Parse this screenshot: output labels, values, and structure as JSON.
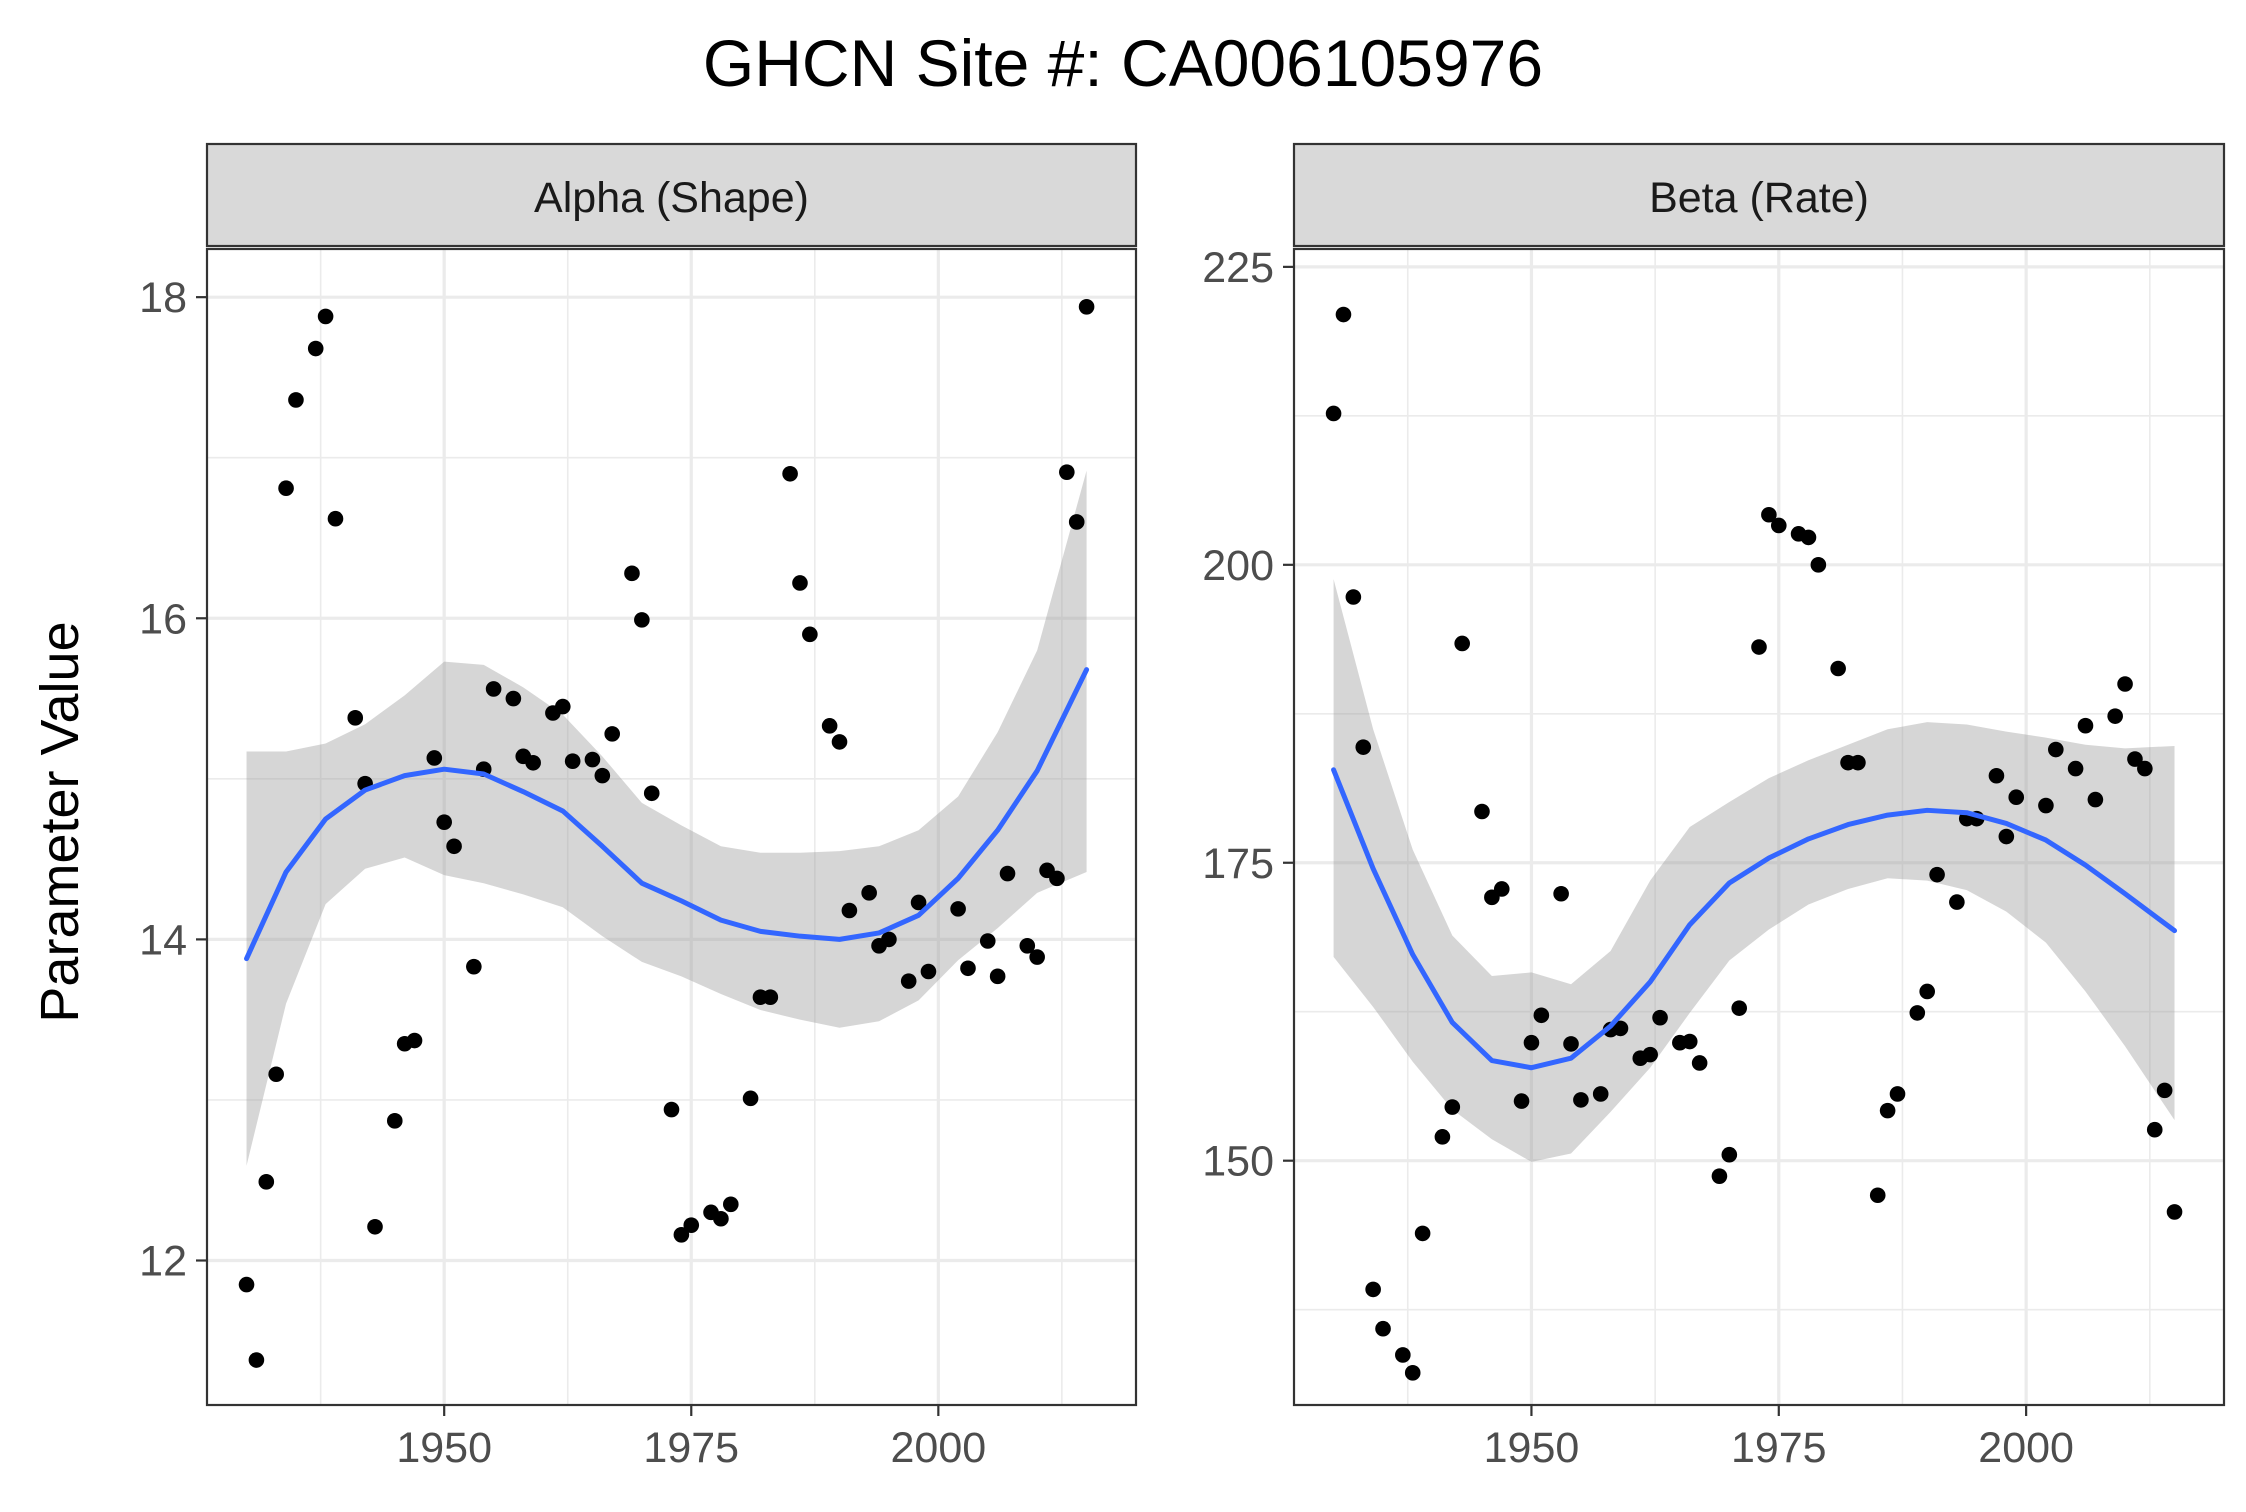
{
  "title": "GHCN Site #: CA006105976",
  "ylabel": "Parameter Value",
  "colors": {
    "points": "#000000",
    "smooth_line": "#3366ff",
    "ribbon": "#999999",
    "strip": "#d9d9d9",
    "grid": "#ebebeb"
  },
  "chart_data": [
    {
      "type": "scatter",
      "panel_label": "Alpha (Shape)",
      "xlim": [
        1926,
        2020
      ],
      "ylim": [
        11.1,
        18.3
      ],
      "x_ticks": [
        1950,
        1975,
        2000
      ],
      "y_ticks": [
        12,
        14,
        16,
        18
      ],
      "grid": true,
      "points": [
        [
          1930,
          11.85
        ],
        [
          1931,
          11.38
        ],
        [
          1932,
          12.49
        ],
        [
          1933,
          13.16
        ],
        [
          1934,
          16.81
        ],
        [
          1935,
          17.36
        ],
        [
          1937,
          17.68
        ],
        [
          1938,
          17.88
        ],
        [
          1939,
          16.62
        ],
        [
          1941,
          15.38
        ],
        [
          1942,
          14.97
        ],
        [
          1943,
          12.21
        ],
        [
          1945,
          12.87
        ],
        [
          1946,
          13.35
        ],
        [
          1947,
          13.37
        ],
        [
          1949,
          15.13
        ],
        [
          1950,
          14.73
        ],
        [
          1951,
          14.58
        ],
        [
          1953,
          13.83
        ],
        [
          1954,
          15.06
        ],
        [
          1955,
          15.56
        ],
        [
          1957,
          15.5
        ],
        [
          1958,
          15.14
        ],
        [
          1959,
          15.1
        ],
        [
          1961,
          15.41
        ],
        [
          1962,
          15.45
        ],
        [
          1963,
          15.11
        ],
        [
          1965,
          15.12
        ],
        [
          1966,
          15.02
        ],
        [
          1967,
          15.28
        ],
        [
          1969,
          16.28
        ],
        [
          1970,
          15.99
        ],
        [
          1971,
          14.91
        ],
        [
          1973,
          12.94
        ],
        [
          1974,
          12.16
        ],
        [
          1975,
          12.22
        ],
        [
          1977,
          12.3
        ],
        [
          1978,
          12.26
        ],
        [
          1979,
          12.35
        ],
        [
          1981,
          13.01
        ],
        [
          1982,
          13.64
        ],
        [
          1983,
          13.64
        ],
        [
          1985,
          16.9
        ],
        [
          1986,
          16.22
        ],
        [
          1987,
          15.9
        ],
        [
          1989,
          15.33
        ],
        [
          1990,
          15.23
        ],
        [
          1991,
          14.18
        ],
        [
          1993,
          14.29
        ],
        [
          1994,
          13.96
        ],
        [
          1995,
          14.0
        ],
        [
          1997,
          13.74
        ],
        [
          1998,
          14.23
        ],
        [
          1999,
          13.8
        ],
        [
          2002,
          14.19
        ],
        [
          2003,
          13.82
        ],
        [
          2005,
          13.99
        ],
        [
          2006,
          13.77
        ],
        [
          2007,
          14.41
        ],
        [
          2009,
          13.96
        ],
        [
          2010,
          13.89
        ],
        [
          2011,
          14.43
        ],
        [
          2012,
          14.38
        ],
        [
          2013,
          16.91
        ],
        [
          2014,
          16.6
        ],
        [
          2015,
          17.94
        ]
      ],
      "smooth": [
        [
          1930,
          13.88
        ],
        [
          1934,
          14.42
        ],
        [
          1938,
          14.75
        ],
        [
          1942,
          14.93
        ],
        [
          1946,
          15.02
        ],
        [
          1950,
          15.06
        ],
        [
          1954,
          15.03
        ],
        [
          1958,
          14.92
        ],
        [
          1962,
          14.8
        ],
        [
          1966,
          14.58
        ],
        [
          1970,
          14.35
        ],
        [
          1974,
          14.24
        ],
        [
          1978,
          14.12
        ],
        [
          1982,
          14.05
        ],
        [
          1986,
          14.02
        ],
        [
          1990,
          14.0
        ],
        [
          1994,
          14.04
        ],
        [
          1998,
          14.15
        ],
        [
          2002,
          14.38
        ],
        [
          2006,
          14.68
        ],
        [
          2010,
          15.05
        ],
        [
          2015,
          15.68
        ]
      ],
      "ribbon_upper": [
        [
          1930,
          15.17
        ],
        [
          1934,
          15.17
        ],
        [
          1938,
          15.22
        ],
        [
          1942,
          15.34
        ],
        [
          1946,
          15.52
        ],
        [
          1950,
          15.73
        ],
        [
          1954,
          15.71
        ],
        [
          1958,
          15.57
        ],
        [
          1962,
          15.4
        ],
        [
          1966,
          15.14
        ],
        [
          1970,
          14.85
        ],
        [
          1974,
          14.71
        ],
        [
          1978,
          14.58
        ],
        [
          1982,
          14.54
        ],
        [
          1986,
          14.54
        ],
        [
          1990,
          14.55
        ],
        [
          1994,
          14.58
        ],
        [
          1998,
          14.68
        ],
        [
          2002,
          14.89
        ],
        [
          2006,
          15.29
        ],
        [
          2010,
          15.8
        ],
        [
          2015,
          16.92
        ]
      ],
      "ribbon_lower": [
        [
          1930,
          12.59
        ],
        [
          1934,
          13.6
        ],
        [
          1938,
          14.22
        ],
        [
          1942,
          14.44
        ],
        [
          1946,
          14.51
        ],
        [
          1950,
          14.4
        ],
        [
          1954,
          14.35
        ],
        [
          1958,
          14.28
        ],
        [
          1962,
          14.2
        ],
        [
          1966,
          14.02
        ],
        [
          1970,
          13.86
        ],
        [
          1974,
          13.77
        ],
        [
          1978,
          13.66
        ],
        [
          1982,
          13.56
        ],
        [
          1986,
          13.5
        ],
        [
          1990,
          13.45
        ],
        [
          1994,
          13.49
        ],
        [
          1998,
          13.62
        ],
        [
          2002,
          13.87
        ],
        [
          2006,
          14.07
        ],
        [
          2010,
          14.29
        ],
        [
          2015,
          14.42
        ]
      ]
    },
    {
      "type": "scatter",
      "panel_label": "Beta (Rate)",
      "xlim": [
        1926,
        2020
      ],
      "ylim": [
        129.5,
        226.5
      ],
      "x_ticks": [
        1950,
        1975,
        2000
      ],
      "y_ticks": [
        150,
        175,
        200,
        225
      ],
      "grid": true,
      "points": [
        [
          1930,
          212.7
        ],
        [
          1931,
          221.0
        ],
        [
          1932,
          197.3
        ],
        [
          1933,
          184.7
        ],
        [
          1934,
          139.2
        ],
        [
          1935,
          135.9
        ],
        [
          1937,
          133.7
        ],
        [
          1938,
          132.2
        ],
        [
          1939,
          143.9
        ],
        [
          1941,
          152.0
        ],
        [
          1942,
          154.5
        ],
        [
          1943,
          193.4
        ],
        [
          1945,
          179.3
        ],
        [
          1946,
          172.1
        ],
        [
          1947,
          172.8
        ],
        [
          1949,
          155.0
        ],
        [
          1950,
          159.9
        ],
        [
          1951,
          162.2
        ],
        [
          1953,
          172.4
        ],
        [
          1954,
          159.8
        ],
        [
          1955,
          155.1
        ],
        [
          1957,
          155.6
        ],
        [
          1958,
          161.0
        ],
        [
          1959,
          161.1
        ],
        [
          1961,
          158.6
        ],
        [
          1962,
          158.9
        ],
        [
          1963,
          162.0
        ],
        [
          1965,
          159.9
        ],
        [
          1966,
          160.0
        ],
        [
          1967,
          158.2
        ],
        [
          1969,
          148.7
        ],
        [
          1970,
          150.5
        ],
        [
          1971,
          162.8
        ],
        [
          1973,
          193.1
        ],
        [
          1974,
          204.2
        ],
        [
          1975,
          203.3
        ],
        [
          1977,
          202.6
        ],
        [
          1978,
          202.3
        ],
        [
          1979,
          200.0
        ],
        [
          1981,
          191.3
        ],
        [
          1982,
          183.4
        ],
        [
          1983,
          183.4
        ],
        [
          1985,
          147.1
        ],
        [
          1986,
          154.2
        ],
        [
          1987,
          155.6
        ],
        [
          1989,
          162.4
        ],
        [
          1990,
          164.2
        ],
        [
          1991,
          174.0
        ],
        [
          1993,
          171.7
        ],
        [
          1994,
          178.7
        ],
        [
          1995,
          178.7
        ],
        [
          1997,
          182.3
        ],
        [
          1998,
          177.2
        ],
        [
          1999,
          180.5
        ],
        [
          2002,
          179.8
        ],
        [
          2003,
          184.5
        ],
        [
          2005,
          182.9
        ],
        [
          2006,
          186.5
        ],
        [
          2007,
          180.3
        ],
        [
          2009,
          187.3
        ],
        [
          2010,
          190.0
        ],
        [
          2011,
          183.7
        ],
        [
          2012,
          182.9
        ],
        [
          2013,
          152.6
        ],
        [
          2014,
          155.9
        ],
        [
          2015,
          145.7
        ]
      ],
      "smooth": [
        [
          1930,
          182.8
        ],
        [
          1934,
          174.5
        ],
        [
          1938,
          167.3
        ],
        [
          1942,
          161.6
        ],
        [
          1946,
          158.4
        ],
        [
          1950,
          157.8
        ],
        [
          1954,
          158.6
        ],
        [
          1958,
          161.3
        ],
        [
          1962,
          165.0
        ],
        [
          1966,
          169.8
        ],
        [
          1970,
          173.3
        ],
        [
          1974,
          175.4
        ],
        [
          1978,
          177.0
        ],
        [
          1982,
          178.2
        ],
        [
          1986,
          179.0
        ],
        [
          1990,
          179.4
        ],
        [
          1994,
          179.2
        ],
        [
          1998,
          178.3
        ],
        [
          2002,
          176.9
        ],
        [
          2006,
          174.8
        ],
        [
          2010,
          172.4
        ],
        [
          2015,
          169.3
        ]
      ],
      "ribbon_upper": [
        [
          1930,
          198.8
        ],
        [
          1934,
          186.2
        ],
        [
          1938,
          176.1
        ],
        [
          1942,
          168.9
        ],
        [
          1946,
          165.5
        ],
        [
          1950,
          165.8
        ],
        [
          1954,
          164.8
        ],
        [
          1958,
          167.6
        ],
        [
          1962,
          173.5
        ],
        [
          1966,
          178.0
        ],
        [
          1970,
          180.1
        ],
        [
          1974,
          182.1
        ],
        [
          1978,
          183.6
        ],
        [
          1982,
          184.9
        ],
        [
          1986,
          186.2
        ],
        [
          1990,
          186.8
        ],
        [
          1994,
          186.6
        ],
        [
          1998,
          186.0
        ],
        [
          2002,
          185.5
        ],
        [
          2006,
          184.9
        ],
        [
          2010,
          184.6
        ],
        [
          2015,
          184.8
        ]
      ],
      "ribbon_lower": [
        [
          1930,
          167.1
        ],
        [
          1934,
          162.9
        ],
        [
          1938,
          158.3
        ],
        [
          1942,
          154.3
        ],
        [
          1946,
          151.8
        ],
        [
          1950,
          149.9
        ],
        [
          1954,
          150.6
        ],
        [
          1958,
          154.1
        ],
        [
          1962,
          157.8
        ],
        [
          1966,
          162.4
        ],
        [
          1970,
          166.8
        ],
        [
          1974,
          169.4
        ],
        [
          1978,
          171.5
        ],
        [
          1982,
          172.8
        ],
        [
          1986,
          173.7
        ],
        [
          1990,
          173.5
        ],
        [
          1994,
          172.7
        ],
        [
          1998,
          170.9
        ],
        [
          2002,
          168.3
        ],
        [
          2006,
          164.2
        ],
        [
          2010,
          159.6
        ],
        [
          2015,
          153.4
        ]
      ]
    }
  ]
}
